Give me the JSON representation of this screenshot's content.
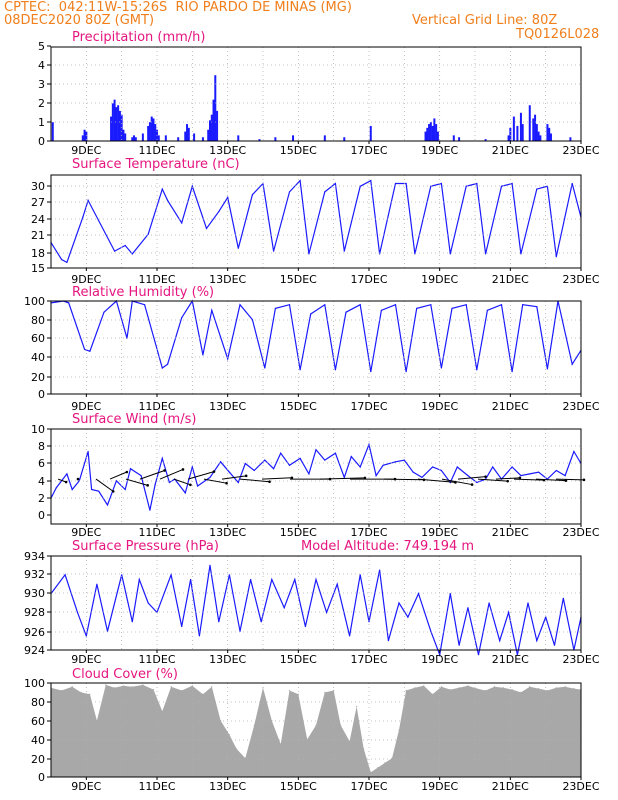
{
  "header": {
    "line1": "CPTEC:  042:11W-15:26S  RIO PARDO DE MINAS (MG)",
    "line2": "08DEC2020 80Z (GMT)",
    "vgrid": "Vertical Grid Line: 80Z",
    "code": "TQ0126L028"
  },
  "colors": {
    "header": "#f07f1c",
    "panel_title": "#e6157f",
    "series": "#1a1aff",
    "wind_vector": "#000000",
    "cloud_fill": "#a8a8a8",
    "grid": "#b0b0b0"
  },
  "chart_data": [
    {
      "type": "bar",
      "title": "Precipitation (mm/h)",
      "xlabel": "",
      "ylabel": "",
      "ylim": [
        0,
        5
      ],
      "yticks": [
        "0",
        "1",
        "2",
        "3",
        "4",
        "5"
      ],
      "xticks": [
        "9DEC",
        "11DEC",
        "13DEC",
        "15DEC",
        "17DEC",
        "19DEC",
        "21DEC",
        "23DEC"
      ],
      "xlim_days": [
        8.0,
        23.0
      ],
      "grid": true,
      "x": [
        8.05,
        8.9,
        8.95,
        9.0,
        9.7,
        9.75,
        9.8,
        9.85,
        9.9,
        9.95,
        10.0,
        10.05,
        10.1,
        10.3,
        10.35,
        10.4,
        10.6,
        10.75,
        10.8,
        10.85,
        10.9,
        10.95,
        11.0,
        11.05,
        11.25,
        11.6,
        11.8,
        11.85,
        11.9,
        12.05,
        12.3,
        12.45,
        12.5,
        12.55,
        12.6,
        12.65,
        12.7,
        13.3,
        13.9,
        14.35,
        14.85,
        15.75,
        16.3,
        17.05,
        18.6,
        18.65,
        18.7,
        18.75,
        18.8,
        18.85,
        18.9,
        18.95,
        19.4,
        19.55,
        20.3,
        20.95,
        21.0,
        21.1,
        21.2,
        21.3,
        21.35,
        21.55,
        21.65,
        21.7,
        21.75,
        21.8,
        21.85,
        22.05,
        22.1,
        22.15,
        22.7
      ],
      "values": [
        1.0,
        0.3,
        0.6,
        0.5,
        1.3,
        2.0,
        2.2,
        1.8,
        1.9,
        1.6,
        1.4,
        0.6,
        0.4,
        0.2,
        0.3,
        0.2,
        0.4,
        0.8,
        1.0,
        1.3,
        1.2,
        0.9,
        0.6,
        0.3,
        0.3,
        0.2,
        0.5,
        0.9,
        0.7,
        0.4,
        0.2,
        0.6,
        1.1,
        1.4,
        2.2,
        3.5,
        1.6,
        0.3,
        0.1,
        0.2,
        0.3,
        0.3,
        0.2,
        0.8,
        0.5,
        0.7,
        0.9,
        1.0,
        0.8,
        1.2,
        0.9,
        0.5,
        0.3,
        0.2,
        0.1,
        0.3,
        0.7,
        1.3,
        0.8,
        1.5,
        0.9,
        1.9,
        1.2,
        1.4,
        0.9,
        0.5,
        0.3,
        0.9,
        0.7,
        0.4,
        0.2
      ]
    },
    {
      "type": "line",
      "title": "Surface Temperature (nC)",
      "xlabel": "",
      "ylabel": "",
      "ylim": [
        15,
        31.5
      ],
      "yticks": [
        "15",
        "18",
        "21",
        "24",
        "27",
        "30"
      ],
      "xticks": [
        "9DEC",
        "11DEC",
        "13DEC",
        "15DEC",
        "17DEC",
        "19DEC",
        "21DEC",
        "23DEC"
      ],
      "xlim_days": [
        8.0,
        23.0
      ],
      "grid": true,
      "x": [
        8.0,
        8.3,
        8.45,
        8.9,
        9.05,
        9.8,
        10.1,
        10.3,
        10.75,
        11.15,
        11.3,
        11.7,
        12.0,
        12.4,
        12.75,
        13.0,
        13.3,
        13.7,
        14.0,
        14.3,
        14.75,
        15.05,
        15.3,
        15.75,
        16.05,
        16.3,
        16.75,
        17.05,
        17.3,
        17.75,
        18.05,
        18.3,
        18.75,
        19.05,
        19.3,
        19.75,
        20.05,
        20.3,
        20.75,
        21.05,
        21.3,
        21.75,
        22.05,
        22.3,
        22.75,
        23.0
      ],
      "values": [
        19.5,
        16.5,
        16.0,
        24.0,
        27.0,
        18.0,
        19.0,
        17.5,
        21.0,
        29.0,
        27.0,
        23.0,
        29.5,
        22.0,
        25.0,
        27.5,
        18.5,
        28.0,
        30.0,
        18.0,
        28.5,
        30.5,
        17.5,
        28.5,
        30.0,
        18.0,
        29.5,
        30.5,
        17.5,
        30.0,
        30.0,
        17.5,
        29.5,
        30.0,
        17.5,
        29.5,
        30.0,
        17.5,
        29.5,
        30.0,
        17.5,
        29.0,
        29.5,
        17.0,
        30.0,
        24.0
      ]
    },
    {
      "type": "line",
      "title": "Relative Humidity (%)",
      "xlabel": "",
      "ylabel": "",
      "ylim": [
        0,
        100
      ],
      "yticks": [
        "0",
        "20",
        "40",
        "60",
        "80",
        "100"
      ],
      "xticks": [
        "9DEC",
        "11DEC",
        "13DEC",
        "15DEC",
        "17DEC",
        "19DEC",
        "21DEC",
        "23DEC"
      ],
      "xlim_days": [
        8.0,
        23.0
      ],
      "grid": true,
      "x": [
        8.0,
        8.35,
        8.5,
        8.95,
        9.1,
        9.5,
        9.85,
        10.15,
        10.3,
        10.65,
        11.15,
        11.3,
        11.7,
        12.0,
        12.3,
        12.55,
        13.0,
        13.35,
        13.7,
        14.05,
        14.35,
        14.75,
        15.05,
        15.35,
        15.75,
        16.05,
        16.35,
        16.75,
        17.05,
        17.35,
        17.75,
        18.05,
        18.35,
        18.75,
        19.05,
        19.35,
        19.75,
        20.05,
        20.35,
        20.75,
        21.05,
        21.35,
        21.75,
        22.05,
        22.35,
        22.75,
        23.0
      ],
      "values": [
        98,
        100,
        98,
        48,
        46,
        88,
        100,
        60,
        100,
        96,
        28,
        32,
        82,
        100,
        42,
        90,
        38,
        96,
        80,
        28,
        92,
        96,
        26,
        86,
        96,
        26,
        88,
        96,
        24,
        90,
        96,
        24,
        92,
        96,
        28,
        92,
        96,
        26,
        90,
        96,
        24,
        96,
        94,
        27,
        100,
        32,
        47
      ]
    },
    {
      "type": "line",
      "title": "Surface Wind (m/s)",
      "xlabel": "",
      "ylabel": "",
      "ylim": [
        -1,
        10
      ],
      "yticks": [
        "0",
        "2",
        "4",
        "6",
        "8",
        "10"
      ],
      "xticks": [
        "9DEC",
        "11DEC",
        "13DEC",
        "15DEC",
        "17DEC",
        "19DEC",
        "21DEC",
        "23DEC"
      ],
      "xlim_days": [
        8.0,
        23.0
      ],
      "grid": true,
      "x": [
        8.0,
        8.15,
        8.45,
        8.6,
        8.8,
        9.05,
        9.15,
        9.35,
        9.6,
        9.85,
        10.1,
        10.25,
        10.55,
        10.8,
        10.95,
        11.15,
        11.35,
        11.5,
        11.8,
        12.0,
        12.15,
        12.5,
        12.8,
        13.05,
        13.3,
        13.5,
        13.75,
        14.05,
        14.3,
        14.5,
        14.75,
        15.05,
        15.3,
        15.5,
        15.75,
        16.05,
        16.3,
        16.5,
        16.75,
        17.0,
        17.2,
        17.4,
        17.75,
        18.0,
        18.25,
        18.5,
        18.8,
        19.05,
        19.3,
        19.5,
        19.8,
        20.05,
        20.3,
        20.5,
        20.75,
        21.05,
        21.3,
        21.55,
        21.8,
        22.05,
        22.3,
        22.55,
        22.8,
        23.0
      ],
      "values": [
        2.0,
        3.2,
        4.8,
        3.0,
        4.0,
        7.4,
        3.0,
        2.8,
        1.2,
        4.0,
        3.0,
        5.4,
        4.6,
        0.6,
        3.6,
        6.6,
        3.8,
        4.2,
        2.6,
        5.6,
        3.4,
        4.4,
        6.2,
        5.0,
        3.8,
        6.0,
        5.2,
        6.4,
        5.4,
        7.2,
        5.8,
        6.6,
        4.8,
        7.6,
        6.4,
        7.2,
        4.4,
        6.8,
        5.6,
        8.2,
        4.6,
        5.8,
        6.2,
        6.4,
        5.0,
        4.4,
        5.6,
        5.2,
        3.8,
        5.6,
        4.6,
        3.8,
        4.2,
        5.6,
        4.2,
        5.6,
        4.6,
        4.8,
        5.0,
        4.2,
        5.2,
        4.6,
        7.4,
        6.0
      ]
    },
    {
      "type": "line",
      "title": "Surface Pressure (hPa)",
      "annotation": "Model Altitude: 749.194 m",
      "xlabel": "",
      "ylabel": "",
      "ylim": [
        924,
        934
      ],
      "yticks": [
        "924",
        "926",
        "928",
        "930",
        "932",
        "934"
      ],
      "xticks": [
        "9DEC",
        "11DEC",
        "13DEC",
        "15DEC",
        "17DEC",
        "19DEC",
        "21DEC",
        "23DEC"
      ],
      "xlim_days": [
        8.0,
        23.0
      ],
      "grid": true,
      "x": [
        8.0,
        8.4,
        8.75,
        9.0,
        9.3,
        9.6,
        10.0,
        10.3,
        10.5,
        10.75,
        11.0,
        11.4,
        11.7,
        11.95,
        12.2,
        12.5,
        12.75,
        13.05,
        13.35,
        13.65,
        13.95,
        14.25,
        14.6,
        14.9,
        15.2,
        15.5,
        15.8,
        16.1,
        16.45,
        16.75,
        17.0,
        17.3,
        17.55,
        17.85,
        18.1,
        18.4,
        18.75,
        19.0,
        19.3,
        19.55,
        19.8,
        20.1,
        20.4,
        20.7,
        20.95,
        21.2,
        21.5,
        21.75,
        22.0,
        22.25,
        22.5,
        22.8,
        23.0
      ],
      "values": [
        930.0,
        932.0,
        928.0,
        925.5,
        931.0,
        926.0,
        932.0,
        927.0,
        931.5,
        929.0,
        928.0,
        932.0,
        926.5,
        931.5,
        925.5,
        933.0,
        927.0,
        932.0,
        926.0,
        931.5,
        927.0,
        931.5,
        928.5,
        931.5,
        926.5,
        931.5,
        928.0,
        931.0,
        925.5,
        932.0,
        927.0,
        932.5,
        925.0,
        929.0,
        927.5,
        930.0,
        926.0,
        923.5,
        930.0,
        924.5,
        928.5,
        923.5,
        929.0,
        925.0,
        928.0,
        923.5,
        929.0,
        925.0,
        927.5,
        924.5,
        929.5,
        924.0,
        927.5
      ]
    },
    {
      "type": "area",
      "title": "Cloud Cover (%)",
      "xlabel": "",
      "ylabel": "",
      "ylim": [
        0,
        100
      ],
      "yticks": [
        "0",
        "20",
        "40",
        "60",
        "80",
        "100"
      ],
      "xticks": [
        "9DEC",
        "11DEC",
        "13DEC",
        "15DEC",
        "17DEC",
        "19DEC",
        "21DEC",
        "23DEC"
      ],
      "xlim_days": [
        8.0,
        23.0
      ],
      "grid": true,
      "x": [
        8.0,
        8.3,
        8.6,
        8.85,
        9.1,
        9.3,
        9.55,
        9.8,
        10.05,
        10.3,
        10.6,
        10.9,
        11.15,
        11.4,
        11.7,
        12.0,
        12.3,
        12.55,
        12.8,
        13.05,
        13.25,
        13.5,
        13.75,
        14.0,
        14.25,
        14.5,
        14.75,
        15.0,
        15.25,
        15.5,
        15.75,
        16.0,
        16.2,
        16.45,
        16.65,
        16.85,
        17.05,
        17.25,
        17.45,
        17.65,
        17.85,
        18.05,
        18.3,
        18.55,
        18.8,
        19.05,
        19.3,
        19.55,
        19.8,
        20.05,
        20.3,
        20.55,
        20.8,
        21.05,
        21.3,
        21.55,
        21.8,
        22.05,
        22.3,
        22.55,
        22.8,
        23.0
      ],
      "values": [
        95,
        92,
        96,
        90,
        88,
        60,
        98,
        95,
        97,
        96,
        98,
        93,
        70,
        96,
        92,
        97,
        88,
        96,
        60,
        45,
        30,
        20,
        55,
        95,
        60,
        35,
        92,
        88,
        40,
        55,
        90,
        92,
        55,
        38,
        75,
        30,
        5,
        10,
        15,
        20,
        50,
        92,
        95,
        97,
        88,
        96,
        93,
        95,
        97,
        94,
        92,
        96,
        95,
        93,
        90,
        96,
        94,
        92,
        95,
        96,
        94,
        93
      ]
    }
  ]
}
